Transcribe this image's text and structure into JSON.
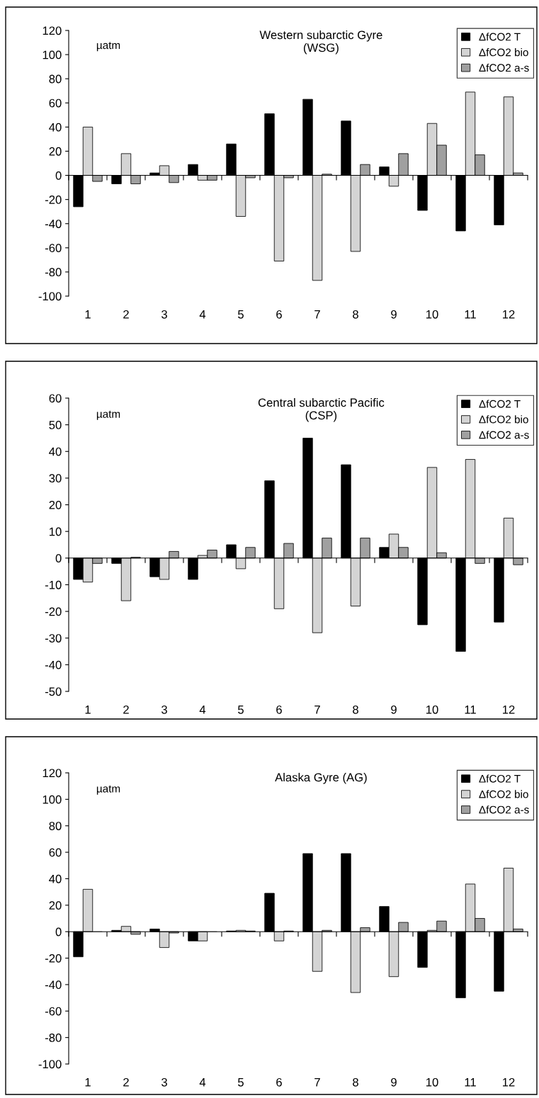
{
  "chart_data": [
    {
      "type": "bar",
      "title": "Western subarctic Gyre\n(WSG)",
      "annotations": [
        "µatm"
      ],
      "categories": [
        "1",
        "2",
        "3",
        "4",
        "5",
        "6",
        "7",
        "8",
        "9",
        "10",
        "11",
        "12"
      ],
      "ylim": [
        -100,
        120
      ],
      "yticks": [
        -100,
        -80,
        -60,
        -40,
        -20,
        0,
        20,
        40,
        60,
        80,
        100,
        120
      ],
      "legend": "top right",
      "series": [
        {
          "name": "ΔfCO2 T",
          "color": "#000000",
          "values": [
            -26,
            -7,
            2,
            9,
            26,
            51,
            63,
            45,
            7,
            -29,
            -46,
            -41
          ]
        },
        {
          "name": "ΔfCO2 bio",
          "color": "#d4d4d4",
          "values": [
            40,
            18,
            8,
            -4,
            -34,
            -71,
            -87,
            -63,
            -9,
            43,
            69,
            65
          ]
        },
        {
          "name": "ΔfCO2 a-s",
          "color": "#a0a0a0",
          "values": [
            -5,
            -7,
            -6,
            -4,
            -2,
            -2,
            1,
            9,
            18,
            25,
            17,
            2
          ]
        }
      ]
    },
    {
      "type": "bar",
      "title": "Central subarctic Pacific\n(CSP)",
      "annotations": [
        "µatm"
      ],
      "categories": [
        "1",
        "2",
        "3",
        "4",
        "5",
        "6",
        "7",
        "8",
        "9",
        "10",
        "11",
        "12"
      ],
      "ylim": [
        -50,
        60
      ],
      "yticks": [
        -50,
        -40,
        -30,
        -20,
        -10,
        0,
        10,
        20,
        30,
        40,
        50,
        60
      ],
      "legend": "top right",
      "series": [
        {
          "name": "ΔfCO2 T",
          "color": "#000000",
          "values": [
            -8,
            -2,
            -7,
            -8,
            5,
            29,
            45,
            35,
            4,
            -25,
            -35,
            -24
          ]
        },
        {
          "name": "ΔfCO2 bio",
          "color": "#d4d4d4",
          "values": [
            -9,
            -16,
            -8,
            1,
            -4,
            -19,
            -28,
            -18,
            9,
            34,
            37,
            15
          ]
        },
        {
          "name": "ΔfCO2 a-s",
          "color": "#a0a0a0",
          "values": [
            -2,
            0.3,
            2.5,
            3,
            4,
            5.5,
            7.5,
            7.5,
            4,
            2,
            -2,
            -2.5
          ]
        }
      ]
    },
    {
      "type": "bar",
      "title": "Alaska Gyre (AG)",
      "annotations": [
        "µatm"
      ],
      "categories": [
        "1",
        "2",
        "3",
        "4",
        "5",
        "6",
        "7",
        "8",
        "9",
        "10",
        "11",
        "12"
      ],
      "ylim": [
        -100,
        120
      ],
      "yticks": [
        -100,
        -80,
        -60,
        -40,
        -20,
        0,
        20,
        40,
        60,
        80,
        100,
        120
      ],
      "legend": "top right",
      "series": [
        {
          "name": "ΔfCO2 T",
          "color": "#000000",
          "values": [
            -19,
            1,
            2,
            -7,
            0.5,
            29,
            59,
            59,
            19,
            -27,
            -50,
            -45
          ]
        },
        {
          "name": "ΔfCO2 bio",
          "color": "#d4d4d4",
          "values": [
            32,
            4,
            -12,
            -7,
            1,
            -7,
            -30,
            -46,
            -34,
            1,
            36,
            48
          ]
        },
        {
          "name": "ΔfCO2 a-s",
          "color": "#a0a0a0",
          "values": [
            0,
            -2,
            -1,
            0,
            0.5,
            0.5,
            1,
            3,
            7,
            8,
            10,
            2
          ]
        }
      ]
    }
  ]
}
